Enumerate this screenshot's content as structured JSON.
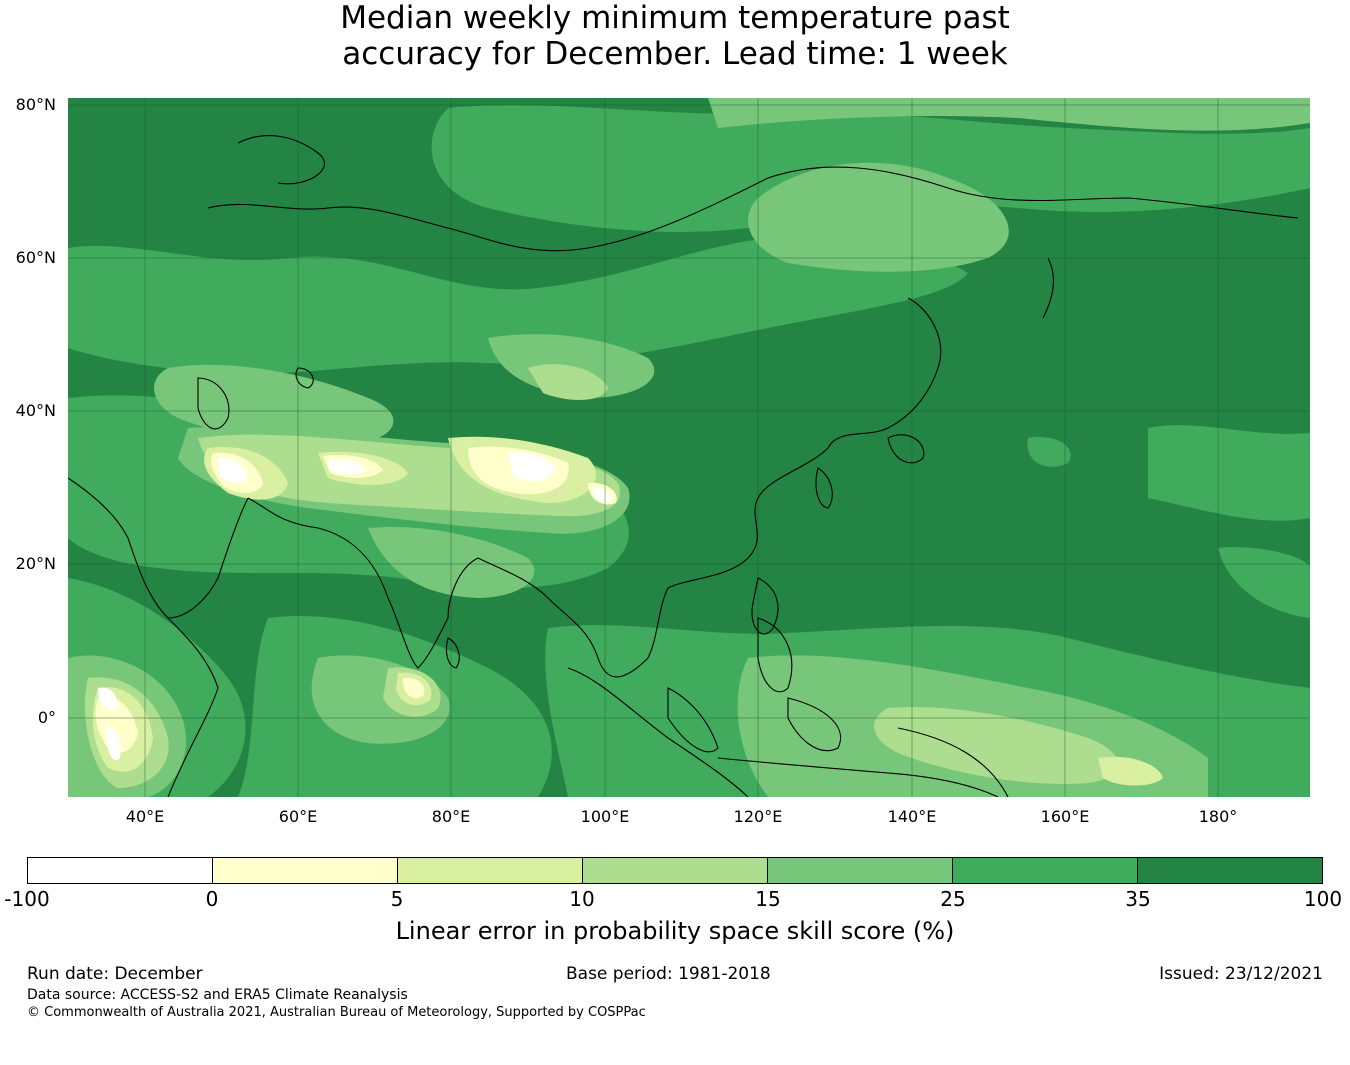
{
  "title": {
    "line1": "Median weekly minimum temperature past",
    "line2": "accuracy for December. Lead time: 1 week"
  },
  "map": {
    "lat_labels": [
      "80°N",
      "60°N",
      "40°N",
      "20°N",
      "0°"
    ],
    "lon_labels": [
      "40°E",
      "60°E",
      "80°E",
      "100°E",
      "120°E",
      "140°E",
      "160°E",
      "180°"
    ]
  },
  "colorbar": {
    "ticks": [
      "-100",
      "0",
      "5",
      "10",
      "15",
      "25",
      "35",
      "100"
    ],
    "colors": [
      "#ffffff",
      "#ffffcc",
      "#d9f0a3",
      "#addd8e",
      "#78c679",
      "#41ab5d",
      "#238443"
    ],
    "label": "Linear error in probability space skill score (%)"
  },
  "footer": {
    "run_date": "Run date: December",
    "base_period": "Base period: 1981-2018",
    "issued": "Issued: 23/12/2021",
    "data_source": "Data source: ACCESS-S2 and ERA5 Climate Reanalysis",
    "copyright": "© Commonwealth of Australia 2021, Australian Bureau of Meteorology, Supported by COSPPac"
  }
}
